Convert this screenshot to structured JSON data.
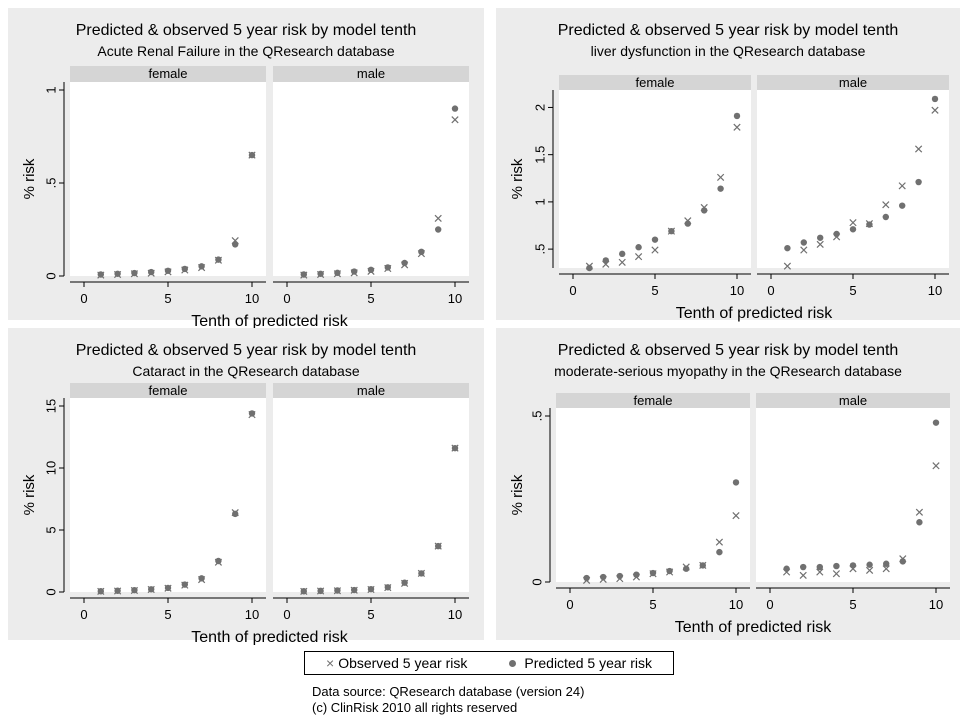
{
  "legend": {
    "observed_label": "Observed 5 year risk",
    "predicted_label": "Predicted 5 year risk",
    "observed_color": "#707070",
    "predicted_color": "#707070"
  },
  "source": {
    "line1": "Data source: QResearch database (version 24)",
    "line2": "(c) ClinRisk 2010 all rights reserved"
  },
  "chart_data": [
    {
      "type": "scatter",
      "title": "Predicted & observed 5 year risk by model tenth",
      "subtitle": "Acute Renal Failure in the QResearch database",
      "xlabel": "Tenth of predicted risk",
      "ylabel": "% risk",
      "xlim": [
        0,
        10
      ],
      "ylim": [
        0,
        1
      ],
      "xticks": [
        0,
        5,
        10
      ],
      "yticks": [
        0,
        0.5,
        1
      ],
      "ytick_labels": [
        "0",
        ".5",
        "1"
      ],
      "grid": false,
      "x": [
        1,
        2,
        3,
        4,
        5,
        6,
        7,
        8,
        9,
        10
      ],
      "panels": [
        {
          "label": "female",
          "observed": [
            0.005,
            0.008,
            0.012,
            0.015,
            0.022,
            0.032,
            0.045,
            0.085,
            0.19,
            0.65
          ],
          "predicted": [
            0.008,
            0.012,
            0.016,
            0.021,
            0.028,
            0.038,
            0.052,
            0.088,
            0.17,
            0.65
          ]
        },
        {
          "label": "male",
          "observed": [
            0.005,
            0.008,
            0.012,
            0.017,
            0.025,
            0.04,
            0.06,
            0.12,
            0.31,
            0.84
          ],
          "predicted": [
            0.008,
            0.012,
            0.017,
            0.024,
            0.033,
            0.046,
            0.07,
            0.13,
            0.25,
            0.9
          ]
        }
      ]
    },
    {
      "type": "scatter",
      "title": "Predicted & observed 5 year risk by model tenth",
      "subtitle": "liver dysfunction in the QResearch database",
      "xlabel": "Tenth of predicted risk",
      "ylabel": "% risk",
      "xlim": [
        0,
        10
      ],
      "ylim": [
        0.3,
        2.1
      ],
      "xticks": [
        0,
        5,
        10
      ],
      "yticks": [
        0.5,
        1,
        1.5,
        2
      ],
      "ytick_labels": [
        ".5",
        "1",
        "1.5",
        "2"
      ],
      "grid": false,
      "x": [
        1,
        2,
        3,
        4,
        5,
        6,
        7,
        8,
        9,
        10
      ],
      "panels": [
        {
          "label": "female",
          "observed": [
            0.32,
            0.34,
            0.36,
            0.42,
            0.49,
            0.69,
            0.8,
            0.94,
            1.26,
            1.79
          ],
          "predicted": [
            0.3,
            0.38,
            0.45,
            0.52,
            0.6,
            0.69,
            0.77,
            0.91,
            1.14,
            1.91
          ]
        },
        {
          "label": "male",
          "observed": [
            0.32,
            0.49,
            0.55,
            0.63,
            0.78,
            0.77,
            0.97,
            1.17,
            1.56,
            1.97
          ],
          "predicted": [
            0.51,
            0.57,
            0.62,
            0.66,
            0.71,
            0.76,
            0.84,
            0.96,
            1.21,
            2.09
          ]
        }
      ]
    },
    {
      "type": "scatter",
      "title": "Predicted & observed 5 year risk by model tenth",
      "subtitle": "Cataract in the QResearch database",
      "xlabel": "Tenth of predicted risk",
      "ylabel": "% risk",
      "xlim": [
        0,
        10
      ],
      "ylim": [
        0,
        15
      ],
      "xticks": [
        0,
        5,
        10
      ],
      "yticks": [
        0,
        5,
        10,
        15
      ],
      "ytick_labels": [
        "0",
        "5",
        "10",
        "15"
      ],
      "grid": false,
      "x": [
        1,
        2,
        3,
        4,
        5,
        6,
        7,
        8,
        9,
        10
      ],
      "panels": [
        {
          "label": "female",
          "observed": [
            0.05,
            0.08,
            0.12,
            0.2,
            0.3,
            0.55,
            1.0,
            2.4,
            6.4,
            14.3
          ],
          "predicted": [
            0.06,
            0.1,
            0.15,
            0.22,
            0.33,
            0.6,
            1.1,
            2.5,
            6.3,
            14.4
          ]
        },
        {
          "label": "male",
          "observed": [
            0.05,
            0.08,
            0.1,
            0.14,
            0.2,
            0.35,
            0.7,
            1.5,
            3.7,
            11.6
          ],
          "predicted": [
            0.06,
            0.09,
            0.12,
            0.16,
            0.23,
            0.38,
            0.75,
            1.5,
            3.7,
            11.6
          ]
        }
      ]
    },
    {
      "type": "scatter",
      "title": "Predicted & observed 5 year risk by model tenth",
      "subtitle": "moderate-serious myopathy in the QResearch database",
      "xlabel": "Tenth of predicted risk",
      "ylabel": "% risk",
      "xlim": [
        0,
        10
      ],
      "ylim": [
        0,
        0.5
      ],
      "xticks": [
        0,
        5,
        10
      ],
      "yticks": [
        0,
        0.5
      ],
      "ytick_labels": [
        "0",
        ".5"
      ],
      "grid": false,
      "x": [
        1,
        2,
        3,
        4,
        5,
        6,
        7,
        8,
        9,
        10
      ],
      "panels": [
        {
          "label": "female",
          "observed": [
            0.005,
            0.008,
            0.01,
            0.015,
            0.025,
            0.03,
            0.045,
            0.05,
            0.12,
            0.2
          ],
          "predicted": [
            0.012,
            0.015,
            0.018,
            0.022,
            0.027,
            0.033,
            0.04,
            0.05,
            0.09,
            0.3
          ]
        },
        {
          "label": "male",
          "observed": [
            0.03,
            0.02,
            0.03,
            0.025,
            0.04,
            0.035,
            0.04,
            0.07,
            0.21,
            0.35
          ],
          "predicted": [
            0.04,
            0.045,
            0.045,
            0.048,
            0.05,
            0.052,
            0.055,
            0.062,
            0.18,
            0.48
          ]
        }
      ]
    }
  ]
}
